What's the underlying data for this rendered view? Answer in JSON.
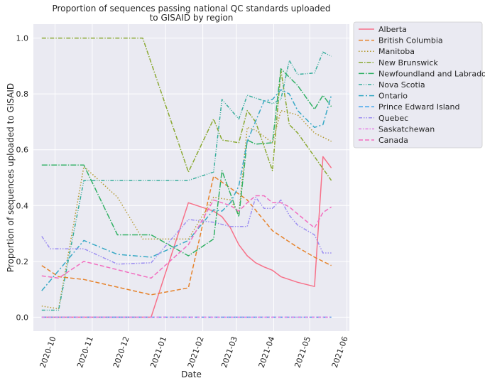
{
  "chart_data": {
    "type": "line",
    "title": [
      "Proportion of sequences passing national QC standards uploaded",
      "to GISAID by region"
    ],
    "xlabel": "Date",
    "ylabel": "Proportion of sequences uploaded to GISAID",
    "xlim": [
      "2020-09-13",
      "2021-06-03"
    ],
    "ylim": [
      -0.05,
      1.05
    ],
    "grid": true,
    "legend_position": "outside-top-right",
    "x_ticks": [
      "2020-10",
      "2020-11",
      "2020-12",
      "2021-01",
      "2021-02",
      "2021-03",
      "2021-04",
      "2021-05",
      "2021-06"
    ],
    "y_ticks": [
      "0.0",
      "0.2",
      "0.4",
      "0.6",
      "0.8",
      "1.0"
    ],
    "series": [
      {
        "name": "Alberta",
        "color": "#f77189",
        "dash": "",
        "points": [
          [
            "2020-09-20",
            0.0
          ],
          [
            "2020-12-20",
            0.0
          ],
          [
            "2021-01-20",
            0.41
          ],
          [
            "2021-02-10",
            0.38
          ],
          [
            "2021-02-17",
            0.36
          ],
          [
            "2021-02-24",
            0.32
          ],
          [
            "2021-03-03",
            0.26
          ],
          [
            "2021-03-10",
            0.22
          ],
          [
            "2021-03-17",
            0.195
          ],
          [
            "2021-03-24",
            0.18
          ],
          [
            "2021-03-31",
            0.168
          ],
          [
            "2021-04-07",
            0.145
          ],
          [
            "2021-04-21",
            0.125
          ],
          [
            "2021-05-05",
            0.11
          ],
          [
            "2021-05-12",
            0.575
          ],
          [
            "2021-05-19",
            0.535
          ]
        ]
      },
      {
        "name": "British Columbia",
        "color": "#e6832c",
        "dash": "6,3",
        "points": [
          [
            "2020-09-20",
            0.185
          ],
          [
            "2020-10-04",
            0.145
          ],
          [
            "2020-10-25",
            0.135
          ],
          [
            "2020-12-20",
            0.08
          ],
          [
            "2021-01-20",
            0.105
          ],
          [
            "2021-02-10",
            0.505
          ],
          [
            "2021-03-10",
            0.42
          ],
          [
            "2021-03-31",
            0.31
          ],
          [
            "2021-04-21",
            0.25
          ],
          [
            "2021-05-05",
            0.215
          ],
          [
            "2021-05-19",
            0.185
          ]
        ]
      },
      {
        "name": "Manitoba",
        "color": "#b49a32",
        "dash": "1.5,2.5",
        "points": [
          [
            "2020-09-20",
            0.04
          ],
          [
            "2020-10-04",
            0.03
          ],
          [
            "2020-10-25",
            0.54
          ],
          [
            "2020-11-22",
            0.43
          ],
          [
            "2020-12-13",
            0.28
          ],
          [
            "2021-01-10",
            0.28
          ],
          [
            "2021-01-20",
            0.28
          ],
          [
            "2021-02-10",
            0.43
          ],
          [
            "2021-02-24",
            0.42
          ],
          [
            "2021-03-03",
            0.37
          ],
          [
            "2021-03-10",
            0.68
          ],
          [
            "2021-03-17",
            0.67
          ],
          [
            "2021-03-31",
            0.625
          ],
          [
            "2021-04-07",
            0.74
          ],
          [
            "2021-04-21",
            0.725
          ],
          [
            "2021-05-05",
            0.66
          ],
          [
            "2021-05-19",
            0.63
          ]
        ]
      },
      {
        "name": "New Brunswick",
        "color": "#8aa932",
        "dash": "6,2,1.5,2",
        "points": [
          [
            "2020-09-20",
            1.0
          ],
          [
            "2020-12-13",
            1.0
          ],
          [
            "2021-01-20",
            0.52
          ],
          [
            "2021-02-10",
            0.71
          ],
          [
            "2021-02-17",
            0.635
          ],
          [
            "2021-03-03",
            0.625
          ],
          [
            "2021-03-10",
            0.74
          ],
          [
            "2021-03-17",
            0.7
          ],
          [
            "2021-03-31",
            0.525
          ],
          [
            "2021-04-07",
            0.885
          ],
          [
            "2021-04-14",
            0.69
          ],
          [
            "2021-04-21",
            0.66
          ],
          [
            "2021-05-05",
            0.575
          ],
          [
            "2021-05-19",
            0.49
          ]
        ]
      },
      {
        "name": "Newfoundland and Labrador",
        "color": "#32b165",
        "dash": "8,2,1.5,2",
        "points": [
          [
            "2020-09-20",
            0.545
          ],
          [
            "2020-10-25",
            0.545
          ],
          [
            "2020-11-22",
            0.295
          ],
          [
            "2020-12-20",
            0.295
          ],
          [
            "2021-01-20",
            0.22
          ],
          [
            "2021-02-10",
            0.28
          ],
          [
            "2021-02-17",
            0.525
          ],
          [
            "2021-03-03",
            0.36
          ],
          [
            "2021-03-10",
            0.635
          ],
          [
            "2021-03-17",
            0.62
          ],
          [
            "2021-03-31",
            0.625
          ],
          [
            "2021-04-07",
            0.89
          ],
          [
            "2021-04-14",
            0.86
          ],
          [
            "2021-04-21",
            0.83
          ],
          [
            "2021-05-05",
            0.745
          ],
          [
            "2021-05-12",
            0.795
          ],
          [
            "2021-05-19",
            0.755
          ]
        ]
      },
      {
        "name": "Nova Scotia",
        "color": "#36ad9b",
        "dash": "5,2,1,2,1,2",
        "points": [
          [
            "2020-09-20",
            0.025
          ],
          [
            "2020-10-04",
            0.025
          ],
          [
            "2020-10-25",
            0.49
          ],
          [
            "2020-12-20",
            0.49
          ],
          [
            "2021-01-20",
            0.49
          ],
          [
            "2021-02-10",
            0.52
          ],
          [
            "2021-02-17",
            0.78
          ],
          [
            "2021-03-03",
            0.71
          ],
          [
            "2021-03-10",
            0.795
          ],
          [
            "2021-03-31",
            0.765
          ],
          [
            "2021-04-07",
            0.78
          ],
          [
            "2021-04-14",
            0.92
          ],
          [
            "2021-04-21",
            0.87
          ],
          [
            "2021-05-05",
            0.875
          ],
          [
            "2021-05-12",
            0.95
          ],
          [
            "2021-05-19",
            0.935
          ]
        ]
      },
      {
        "name": "Ontario",
        "color": "#38a9c5",
        "dash": "7,3,2,3",
        "points": [
          [
            "2020-09-20",
            0.095
          ],
          [
            "2020-10-25",
            0.275
          ],
          [
            "2020-11-22",
            0.225
          ],
          [
            "2020-12-20",
            0.215
          ],
          [
            "2021-01-20",
            0.275
          ],
          [
            "2021-02-10",
            0.385
          ],
          [
            "2021-02-17",
            0.38
          ],
          [
            "2021-02-24",
            0.41
          ],
          [
            "2021-03-03",
            0.47
          ],
          [
            "2021-03-10",
            0.63
          ],
          [
            "2021-03-24",
            0.775
          ],
          [
            "2021-03-31",
            0.78
          ],
          [
            "2021-04-07",
            0.815
          ],
          [
            "2021-04-14",
            0.8
          ],
          [
            "2021-04-21",
            0.74
          ],
          [
            "2021-05-05",
            0.68
          ],
          [
            "2021-05-12",
            0.69
          ],
          [
            "2021-05-19",
            0.795
          ]
        ]
      },
      {
        "name": "Prince Edward Island",
        "color": "#3ba3ec",
        "dash": "6,3",
        "points": [
          [
            "2020-09-20",
            0.0
          ],
          [
            "2021-05-19",
            0.0
          ]
        ]
      },
      {
        "name": "Quebec",
        "color": "#9d8ff1",
        "dash": "5,2,1.5,2,1.5,2",
        "points": [
          [
            "2020-09-20",
            0.29
          ],
          [
            "2020-09-27",
            0.245
          ],
          [
            "2020-10-25",
            0.245
          ],
          [
            "2020-11-22",
            0.19
          ],
          [
            "2020-12-20",
            0.195
          ],
          [
            "2021-01-20",
            0.35
          ],
          [
            "2021-02-10",
            0.34
          ],
          [
            "2021-02-24",
            0.325
          ],
          [
            "2021-03-03",
            0.325
          ],
          [
            "2021-03-10",
            0.325
          ],
          [
            "2021-03-17",
            0.43
          ],
          [
            "2021-03-24",
            0.39
          ],
          [
            "2021-03-31",
            0.39
          ],
          [
            "2021-04-07",
            0.42
          ],
          [
            "2021-04-14",
            0.365
          ],
          [
            "2021-04-21",
            0.33
          ],
          [
            "2021-05-05",
            0.295
          ],
          [
            "2021-05-12",
            0.23
          ],
          [
            "2021-05-19",
            0.23
          ]
        ]
      },
      {
        "name": "Saskatchewan",
        "color": "#e57fe5",
        "dash": "4,2,1.5,2",
        "points": [
          [
            "2020-09-20",
            0.0
          ],
          [
            "2021-05-19",
            0.0
          ]
        ]
      },
      {
        "name": "Canada",
        "color": "#f26ec0",
        "dash": "6,3",
        "points": [
          [
            "2020-09-20",
            0.148
          ],
          [
            "2020-10-04",
            0.14
          ],
          [
            "2020-10-25",
            0.2
          ],
          [
            "2020-12-20",
            0.14
          ],
          [
            "2021-01-20",
            0.26
          ],
          [
            "2021-02-10",
            0.42
          ],
          [
            "2021-02-24",
            0.4
          ],
          [
            "2021-03-03",
            0.38
          ],
          [
            "2021-03-10",
            0.41
          ],
          [
            "2021-03-17",
            0.435
          ],
          [
            "2021-03-24",
            0.435
          ],
          [
            "2021-03-31",
            0.41
          ],
          [
            "2021-04-07",
            0.41
          ],
          [
            "2021-04-14",
            0.395
          ],
          [
            "2021-04-21",
            0.37
          ],
          [
            "2021-05-05",
            0.32
          ],
          [
            "2021-05-12",
            0.375
          ],
          [
            "2021-05-19",
            0.395
          ]
        ]
      }
    ]
  }
}
